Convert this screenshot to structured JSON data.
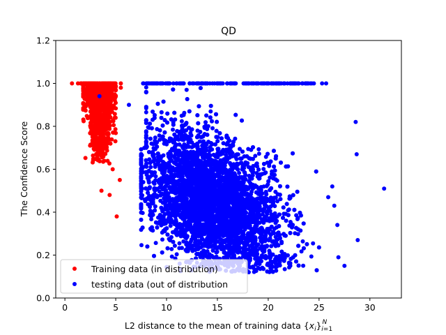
{
  "chart_data": {
    "type": "scatter",
    "title": "QD",
    "xlabel": "L2 distance to the mean of training data {x_i}_{i=1}^N",
    "ylabel": "The Confidence Score",
    "xlim": [
      -0.9,
      33.1
    ],
    "ylim": [
      0.0,
      1.2
    ],
    "xticks": [
      0,
      5,
      10,
      15,
      20,
      25,
      30
    ],
    "yticks": [
      0.0,
      0.2,
      0.4,
      0.6,
      0.8,
      1.0,
      1.2
    ],
    "ytick_labels": [
      "0.0",
      "0.2",
      "0.4",
      "0.6",
      "0.8",
      "1.0",
      "1.2"
    ],
    "grid": false,
    "legend_position": "lower-left",
    "series": [
      {
        "name": "Training data (in distribution)",
        "color": "#ff0000",
        "marker": "circle",
        "regions": [
          {
            "x_min": 1.2,
            "x_max": 5.0,
            "y_value": 1.0,
            "count": 60
          },
          {
            "x_min": 1.8,
            "x_max": 5.0,
            "y_min": 0.62,
            "y_max": 1.0,
            "x_center": 3.4,
            "count": 700
          }
        ],
        "points": [
          {
            "x": 0.7,
            "y": 1.0
          },
          {
            "x": 5.5,
            "y": 1.0
          },
          {
            "x": 5.5,
            "y": 0.98
          },
          {
            "x": 3.6,
            "y": 0.5
          },
          {
            "x": 4.4,
            "y": 0.48
          },
          {
            "x": 5.1,
            "y": 0.38
          },
          {
            "x": 4.7,
            "y": 0.6
          },
          {
            "x": 5.4,
            "y": 0.55
          }
        ]
      },
      {
        "name": "testing data (out of distribution",
        "color": "#0000ff",
        "marker": "circle",
        "regions": [
          {
            "x_min": 7.5,
            "x_max": 24.5,
            "y_value": 1.0,
            "count": 150
          },
          {
            "x_min": 7.5,
            "x_max": 25.0,
            "y_min": 0.12,
            "y_max": 1.0,
            "x_center": 14.5,
            "y_center": 0.45,
            "count": 6000
          }
        ],
        "points": [
          {
            "x": 31.4,
            "y": 0.51
          },
          {
            "x": 28.6,
            "y": 0.82
          },
          {
            "x": 28.7,
            "y": 0.67
          },
          {
            "x": 28.8,
            "y": 0.27
          },
          {
            "x": 27.5,
            "y": 0.15
          },
          {
            "x": 26.8,
            "y": 0.34
          },
          {
            "x": 26.5,
            "y": 0.43
          },
          {
            "x": 26.3,
            "y": 0.52
          },
          {
            "x": 25.7,
            "y": 1.0
          },
          {
            "x": 25.3,
            "y": 1.0
          },
          {
            "x": 26.9,
            "y": 0.19
          },
          {
            "x": 25.9,
            "y": 0.47
          },
          {
            "x": 3.4,
            "y": 0.94
          },
          {
            "x": 6.3,
            "y": 0.9
          }
        ]
      }
    ]
  }
}
